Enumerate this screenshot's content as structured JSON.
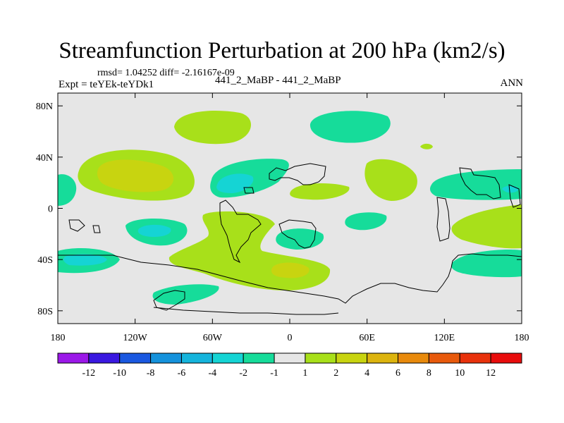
{
  "header": {
    "title": "Streamfunction Perturbation at 200 hPa (km2/s)",
    "stats": "rmsd= 1.04252 diff= -2.16167e-09",
    "left": "Expt = teYEk-teYDk1",
    "center": "441_2_MaBP - 441_2_MaBP",
    "right": "ANN"
  },
  "chart_data": {
    "type": "heatmap",
    "title": "Streamfunction Perturbation at 200 hPa (km2/s)",
    "subtitle": "441_2_MaBP - 441_2_MaBP",
    "season": "ANN",
    "units": "km2/s",
    "rmsd": 1.04252,
    "diff": -2.16167e-09,
    "x_axis": {
      "range": [
        -180,
        180
      ],
      "ticks": [
        -180,
        -120,
        -60,
        0,
        60,
        120,
        180
      ],
      "tick_labels": [
        "180",
        "120W",
        "60W",
        "0",
        "60E",
        "120E",
        "180"
      ]
    },
    "y_axis": {
      "range": [
        -90,
        90
      ],
      "ticks": [
        80,
        40,
        0,
        -40,
        -80
      ],
      "tick_labels": [
        "80N",
        "40N",
        "0",
        "40S",
        "80S"
      ]
    },
    "colorbar": {
      "levels": [
        -12,
        -10,
        -8,
        -6,
        -4,
        -2,
        -1,
        1,
        2,
        4,
        6,
        8,
        10,
        12
      ],
      "labels": [
        "-12",
        "-10",
        "-8",
        "-6",
        "-4",
        "-2",
        "-1",
        "1",
        "2",
        "4",
        "6",
        "8",
        "10",
        "12"
      ],
      "colors": [
        "#9b18e8",
        "#3a18e0",
        "#1a58e0",
        "#1592dc",
        "#15b4dc",
        "#15d4d4",
        "#16dc9a",
        "#e6e6e6",
        "#a8e01a",
        "#c8d410",
        "#dcb40e",
        "#e88a0c",
        "#e85a0c",
        "#e8320c",
        "#e80c0c"
      ]
    },
    "features": [
      {
        "name": "positive anomaly",
        "center_lon": -120,
        "center_lat": 35,
        "value": 4
      },
      {
        "name": "positive anomaly",
        "center_lon": -45,
        "center_lat": -20,
        "value": 2
      },
      {
        "name": "positive anomaly",
        "center_lon": 0,
        "center_lat": -50,
        "value": 4
      },
      {
        "name": "negative anomaly",
        "center_lon": -45,
        "center_lat": 20,
        "value": -4
      },
      {
        "name": "negative anomaly",
        "center_lon": -155,
        "center_lat": -40,
        "value": -4
      },
      {
        "name": "negative anomaly",
        "center_lon": 155,
        "center_lat": 15,
        "value": -4
      },
      {
        "name": "negative anomaly",
        "center_lon": 5,
        "center_lat": -25,
        "value": -4
      }
    ]
  }
}
